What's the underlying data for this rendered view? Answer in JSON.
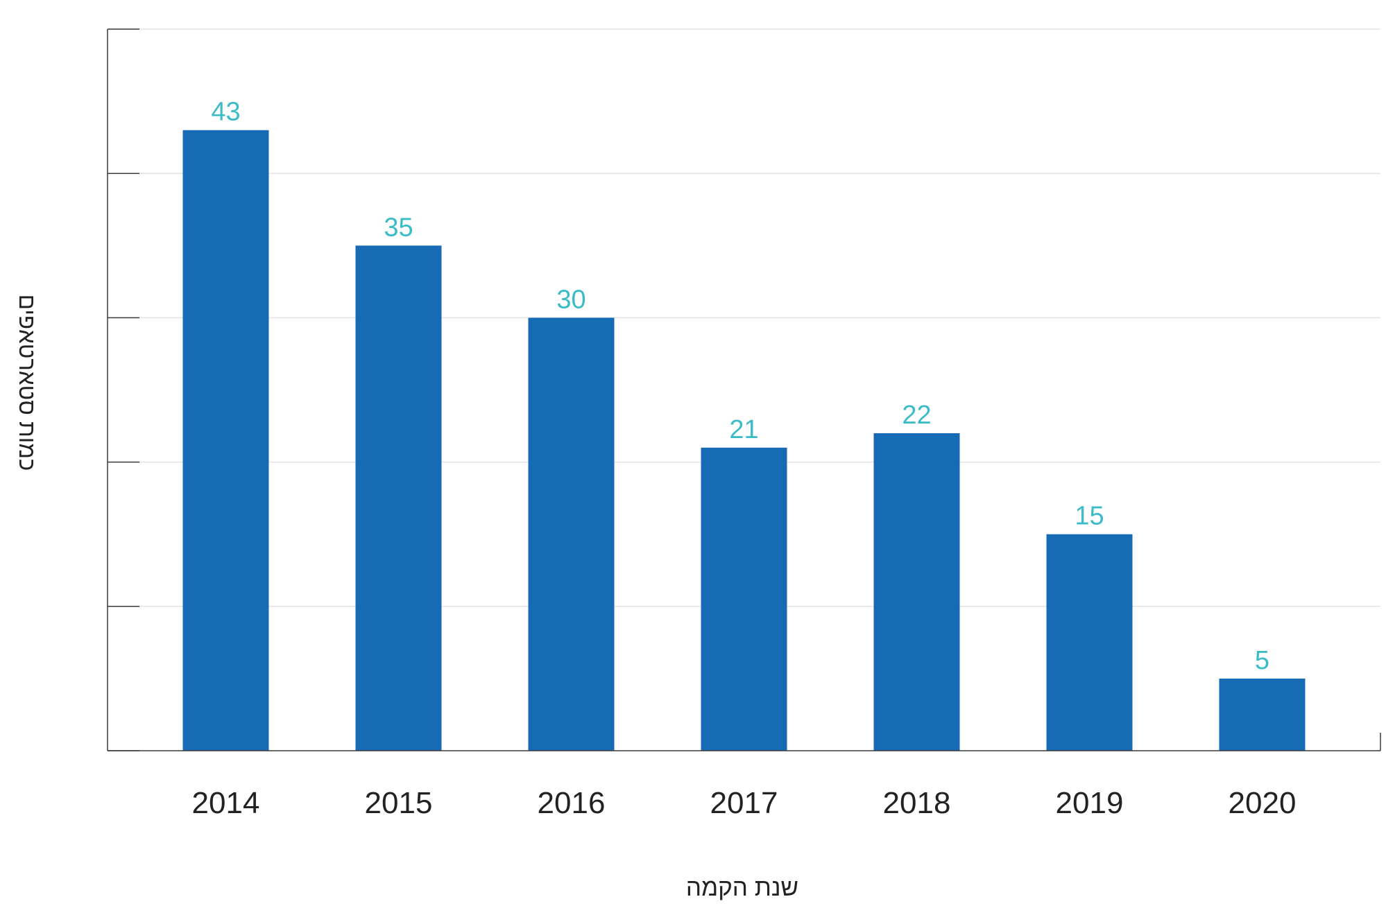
{
  "chart_data": {
    "type": "bar",
    "title": "",
    "xlabel": "שנת הקמה",
    "ylabel": "כמות סטארטאפים",
    "categories": [
      "2014",
      "2015",
      "2016",
      "2017",
      "2018",
      "2019",
      "2020"
    ],
    "values": [
      43,
      35,
      30,
      21,
      22,
      15,
      5
    ],
    "data_labels": [
      "43",
      "35",
      "30",
      "21",
      "22",
      "15",
      "5"
    ],
    "ylim": [
      0,
      50
    ],
    "y_tick_values": [
      0,
      10,
      20,
      30,
      40,
      50
    ],
    "y_tick_labels_shown": false,
    "grid": true,
    "legend": "none",
    "colors": {
      "bar": "#176bb5",
      "data_label": "#3bbcc7",
      "axis": "#3a3a3a",
      "grid": "#e3e3e3",
      "text": "#222222"
    }
  }
}
